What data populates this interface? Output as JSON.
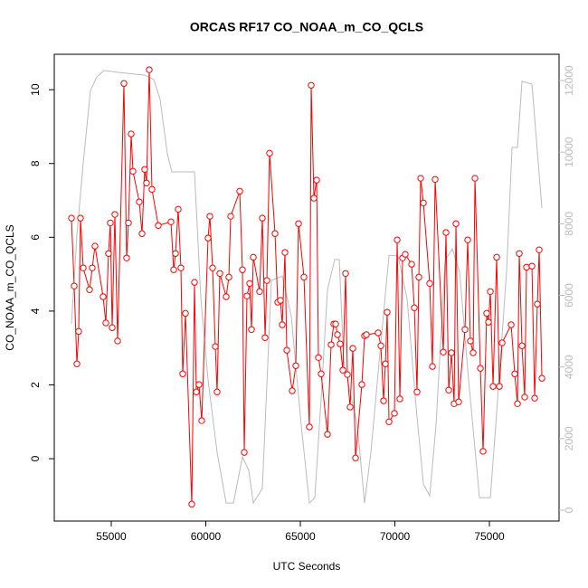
{
  "chart_data": {
    "type": "line",
    "title": "ORCAS RF17 CO_NOAA_m_CO_QCLS",
    "x_label": "UTC Seconds",
    "y_label": "CO_NOAA_m_CO_QCLS",
    "xlim": [
      51986,
      78684
    ],
    "ylim": [
      -1.69,
      10.96
    ],
    "y2lim": [
      -303,
      12733
    ],
    "xticks": [
      55000,
      60000,
      65000,
      70000,
      75000
    ],
    "yticks": [
      0,
      2,
      4,
      6,
      8,
      10
    ],
    "y2ticks": [
      0,
      2000,
      4000,
      6000,
      8000,
      10000,
      12000
    ],
    "series": [
      {
        "color": "#bbbbbb",
        "axis": "y2",
        "markers": false,
        "x": [
          52895,
          53182,
          53517,
          53899,
          54234,
          54617,
          55335,
          56770,
          57249,
          57584,
          57967,
          58206,
          59402,
          59737,
          60120,
          60598,
          61077,
          61460,
          61938,
          62273,
          62512,
          62991,
          63470,
          64044,
          64522,
          65049,
          65479,
          65766,
          66101,
          66436,
          66819,
          67058,
          67297,
          68015,
          68398,
          68733,
          69212,
          69690,
          70168,
          70647,
          71125,
          71508,
          71843,
          72178,
          72657,
          73039,
          73422,
          73900,
          74475,
          75049,
          75336,
          75910,
          76198,
          76485,
          76724,
          77250,
          77777
        ],
        "values": [
          5205,
          7680,
          9700,
          11720,
          12100,
          12280,
          12230,
          12150,
          12030,
          11470,
          9950,
          9450,
          9450,
          5910,
          3640,
          1620,
          200,
          200,
          1490,
          1110,
          200,
          610,
          6420,
          6540,
          5410,
          2370,
          200,
          350,
          3130,
          6160,
          7000,
          7000,
          4140,
          2370,
          200,
          1620,
          4400,
          7120,
          7100,
          5910,
          2880,
          730,
          400,
          2370,
          6970,
          7300,
          6670,
          3640,
          350,
          350,
          2370,
          6670,
          10130,
          10130,
          11980,
          11900,
          8440
        ]
      },
      {
        "color": "#ff0000",
        "markers": true,
        "x": [
          52895,
          53038,
          53182,
          53277,
          53373,
          53517,
          53852,
          53995,
          54139,
          54569,
          54713,
          54856,
          54952,
          55048,
          55191,
          55335,
          55670,
          55813,
          55909,
          56053,
          56148,
          56483,
          56627,
          56770,
          56866,
          57010,
          57153,
          57488,
          58158,
          58302,
          58397,
          58541,
          58684,
          58780,
          58924,
          59259,
          59402,
          59498,
          59641,
          59785,
          60120,
          60216,
          60359,
          60503,
          60598,
          60742,
          61077,
          61221,
          61316,
          61795,
          61938,
          62034,
          62178,
          62321,
          62417,
          62512,
          62847,
          62991,
          63135,
          63230,
          63374,
          63661,
          63804,
          63948,
          64044,
          64187,
          64283,
          64570,
          64761,
          64905,
          65192,
          65479,
          65575,
          65718,
          65862,
          65958,
          66101,
          66436,
          66628,
          66771,
          66867,
          66963,
          67106,
          67250,
          67393,
          67489,
          67632,
          67776,
          67920,
          68254,
          68398,
          68494,
          69116,
          69259,
          69403,
          69499,
          69594,
          69690,
          69977,
          70121,
          70264,
          70408,
          70551,
          70886,
          71030,
          71173,
          71269,
          71365,
          71508,
          71843,
          71987,
          72130,
          72561,
          72705,
          72848,
          72992,
          73135,
          73231,
          73374,
          73709,
          73853,
          73996,
          74140,
          74236,
          74523,
          74666,
          74858,
          74953,
          75049,
          75193,
          75384,
          75528,
          75671,
          76150,
          76341,
          76485,
          76580,
          76724,
          76867,
          76963,
          77250,
          77394,
          77537,
          77633,
          77777
        ],
        "values": [
          6.52,
          4.68,
          2.57,
          3.45,
          6.52,
          5.17,
          4.58,
          5.17,
          5.76,
          4.39,
          3.68,
          5.56,
          6.39,
          3.55,
          6.62,
          3.19,
          10.17,
          5.44,
          6.39,
          8.8,
          7.79,
          6.96,
          6.1,
          7.84,
          7.47,
          10.54,
          7.3,
          6.32,
          6.42,
          5.12,
          5.56,
          6.76,
          5.17,
          2.3,
          3.94,
          -1.23,
          4.78,
          1.81,
          2.01,
          1.03,
          5.98,
          6.57,
          5.17,
          3.04,
          1.81,
          5.02,
          4.39,
          4.92,
          6.57,
          7.25,
          5.12,
          0.17,
          4.41,
          4.75,
          3.5,
          5.46,
          4.53,
          6.52,
          3.28,
          4.83,
          8.28,
          6.1,
          4.24,
          4.29,
          3.63,
          5.59,
          2.94,
          1.84,
          2.52,
          6.37,
          4.92,
          0.86,
          10.12,
          7.06,
          7.55,
          2.74,
          2.3,
          0.66,
          3.09,
          3.65,
          3.65,
          3.36,
          3.11,
          2.4,
          5.02,
          2.28,
          1.4,
          2.99,
          0.02,
          2.01,
          3.33,
          3.36,
          3.41,
          3.06,
          1.57,
          2.57,
          3.97,
          1.0,
          1.23,
          5.93,
          1.62,
          5.44,
          5.54,
          5.27,
          4.09,
          1.81,
          4.92,
          7.6,
          6.93,
          4.75,
          2.5,
          7.57,
          2.89,
          6.13,
          1.86,
          2.87,
          1.49,
          6.37,
          1.54,
          3.5,
          5.93,
          3.19,
          2.87,
          7.6,
          2.45,
          0.2,
          3.94,
          3.7,
          4.53,
          1.96,
          5.46,
          1.96,
          3.14,
          3.63,
          2.3,
          1.49,
          5.56,
          3.06,
          1.67,
          5.19,
          5.22,
          1.64,
          4.19,
          5.66,
          2.18
        ]
      }
    ]
  }
}
